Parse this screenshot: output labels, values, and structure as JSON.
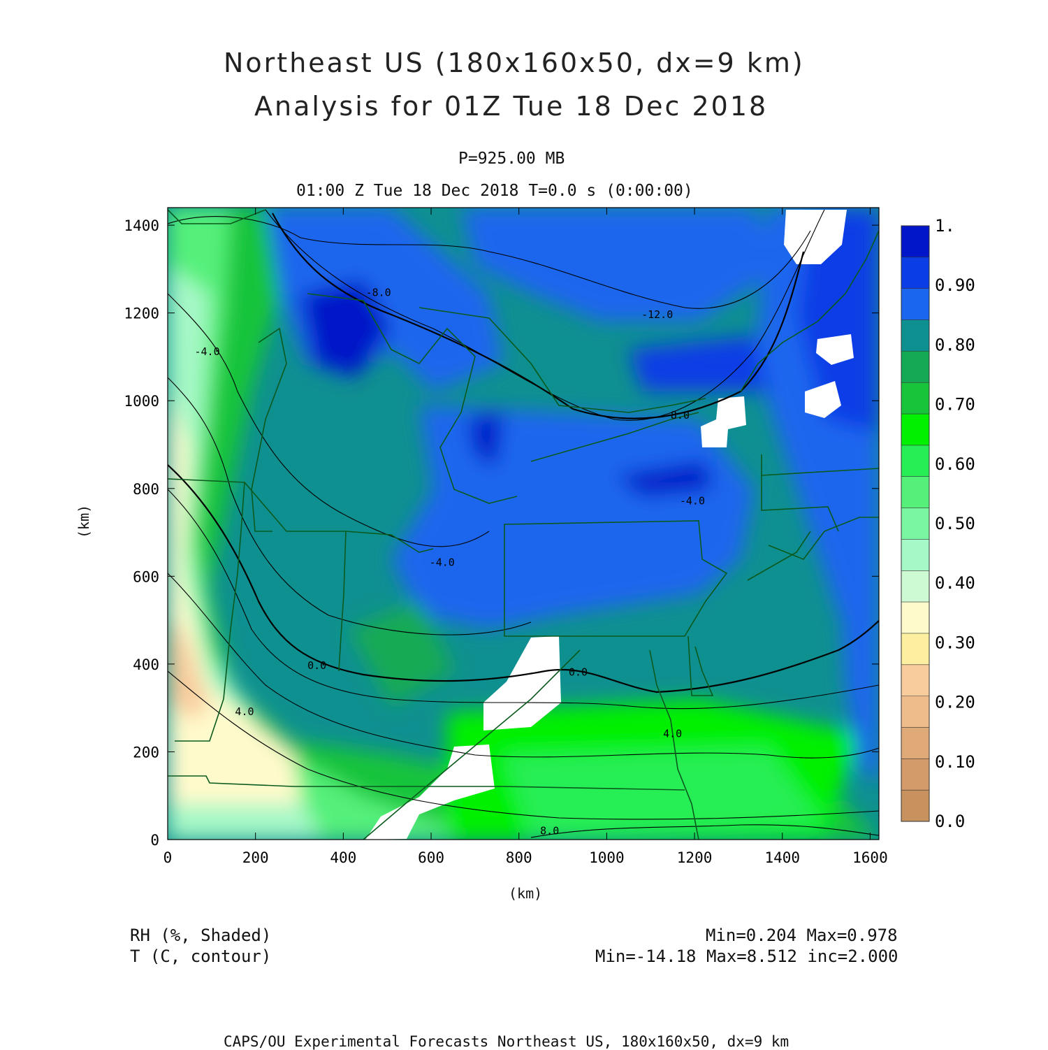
{
  "header": {
    "title_line1": "Northeast US (180x160x50, dx=9 km)",
    "title_line2": "Analysis for 01Z Tue 18 Dec 2018",
    "level": "P=925.00 MB",
    "valid_time": "01:00 Z Tue 18 Dec 2018   T=0.0 s (0:00:00)"
  },
  "axes": {
    "x_label": "(km)",
    "y_label": "(km)",
    "x_ticks": [
      0,
      200,
      400,
      600,
      800,
      1000,
      1200,
      1400,
      1600
    ],
    "y_ticks": [
      0,
      200,
      400,
      600,
      800,
      1000,
      1200,
      1400
    ],
    "x_range": [
      0,
      1620
    ],
    "y_range": [
      0,
      1440
    ]
  },
  "colorbar": {
    "labels": [
      "1.",
      "0.90",
      "0.80",
      "0.70",
      "0.60",
      "0.50",
      "0.40",
      "0.30",
      "0.20",
      "0.10",
      "0.0"
    ],
    "colors_top_to_bottom": [
      "#0016c8",
      "#0a3de6",
      "#1a66ee",
      "#0f9090",
      "#14aa55",
      "#18c43a",
      "#00f000",
      "#28ee55",
      "#55f07a",
      "#7af5a2",
      "#a6f8c6",
      "#cdfad2",
      "#fffacc",
      "#fcf0a0",
      "#f8cc9c",
      "#eebb8a",
      "#e0aa78",
      "#d39a6a",
      "#c8925e"
    ]
  },
  "contour_labels": [
    {
      "text": "-12.0",
      "x": 1115,
      "y": 1195
    },
    {
      "text": "-8.0",
      "x": 1160,
      "y": 965
    },
    {
      "text": "-8.0",
      "x": 480,
      "y": 1245
    },
    {
      "text": "-4.0",
      "x": 90,
      "y": 1110
    },
    {
      "text": "-4.0",
      "x": 1195,
      "y": 770
    },
    {
      "text": "-4.0",
      "x": 625,
      "y": 630
    },
    {
      "text": "0.0",
      "x": 340,
      "y": 395
    },
    {
      "text": "0.0",
      "x": 935,
      "y": 380
    },
    {
      "text": "4.0",
      "x": 175,
      "y": 290
    },
    {
      "text": "4.0",
      "x": 1150,
      "y": 240
    },
    {
      "text": "8.0",
      "x": 870,
      "y": 18
    }
  ],
  "footer": {
    "field1": "RH (%, Shaded)",
    "field2": "T (C, contour)",
    "stats1": "Min=0.204 Max=0.978",
    "stats2": "Min=-14.18 Max=8.512 inc=2.000",
    "credit": "CAPS/OU Experimental Forecasts  Northeast US, 180x160x50, dx=9 km"
  }
}
